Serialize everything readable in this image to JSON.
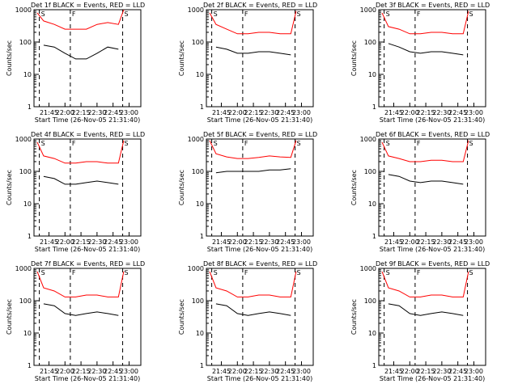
{
  "figure": {
    "xlabel": "Start Time (26-Nov-05 21:31:40)",
    "ylabel": "Counts/sec",
    "x_tick_labels": [
      "21:45",
      "22:00",
      "22:15",
      "22:30",
      "22:45",
      "23:00"
    ],
    "y_tick_labels": [
      "1",
      "10",
      "100",
      "1000"
    ]
  },
  "chart_data": [
    {
      "type": "line",
      "title": "Det 1f BLACK = Events, RED = LLD",
      "x_ticks": [
        "21:45",
        "22:00",
        "22:15",
        "22:30",
        "22:45",
        "23:00"
      ],
      "y_ticks": [
        1,
        10,
        100,
        1000
      ],
      "yscale": "log",
      "ylim": [
        1,
        1000
      ],
      "markers": [
        {
          "label": "S",
          "time": "21:36"
        },
        {
          "label": "F",
          "time": "22:05"
        },
        {
          "label": "S",
          "time": "22:54"
        }
      ],
      "series": [
        {
          "color": "#000000",
          "time": [
            "21:40",
            "21:50",
            "22:00",
            "22:10",
            "22:20",
            "22:30",
            "22:40",
            "22:50"
          ],
          "values": [
            80,
            70,
            45,
            30,
            30,
            45,
            70,
            60
          ]
        },
        {
          "color": "#ff0000",
          "time": [
            "21:34",
            "21:40",
            "21:50",
            "22:00",
            "22:10",
            "22:20",
            "22:30",
            "22:40",
            "22:50",
            "22:55"
          ],
          "values": [
            800,
            450,
            350,
            250,
            250,
            250,
            350,
            400,
            350,
            1000
          ]
        }
      ]
    },
    {
      "type": "line",
      "title": "Det 2f BLACK = Events, RED = LLD",
      "x_ticks": [
        "21:45",
        "22:00",
        "22:15",
        "22:30",
        "22:45",
        "23:00"
      ],
      "y_ticks": [
        1,
        10,
        100,
        1000
      ],
      "yscale": "log",
      "ylim": [
        1,
        1000
      ],
      "markers": [
        {
          "label": "S",
          "time": "21:36"
        },
        {
          "label": "F",
          "time": "22:05"
        },
        {
          "label": "S",
          "time": "22:54"
        }
      ],
      "series": [
        {
          "color": "#000000",
          "time": [
            "21:40",
            "21:50",
            "22:00",
            "22:10",
            "22:20",
            "22:30",
            "22:40",
            "22:50"
          ],
          "values": [
            70,
            60,
            45,
            45,
            50,
            50,
            45,
            40
          ]
        },
        {
          "color": "#ff0000",
          "time": [
            "21:34",
            "21:40",
            "21:50",
            "22:00",
            "22:10",
            "22:20",
            "22:30",
            "22:40",
            "22:50",
            "22:55"
          ],
          "values": [
            800,
            350,
            250,
            180,
            180,
            200,
            200,
            180,
            180,
            900
          ]
        }
      ]
    },
    {
      "type": "line",
      "title": "Det 3f BLACK = Events, RED = LLD",
      "x_ticks": [
        "21:45",
        "22:00",
        "22:15",
        "22:30",
        "22:45",
        "23:00"
      ],
      "y_ticks": [
        1,
        10,
        100,
        1000
      ],
      "yscale": "log",
      "ylim": [
        1,
        1000
      ],
      "markers": [
        {
          "label": "S",
          "time": "21:36"
        },
        {
          "label": "F",
          "time": "22:05"
        },
        {
          "label": "S",
          "time": "22:54"
        }
      ],
      "series": [
        {
          "color": "#000000",
          "time": [
            "21:40",
            "21:50",
            "22:00",
            "22:10",
            "22:20",
            "22:30",
            "22:40",
            "22:50"
          ],
          "values": [
            90,
            70,
            50,
            45,
            50,
            50,
            45,
            40
          ]
        },
        {
          "color": "#ff0000",
          "time": [
            "21:34",
            "21:40",
            "21:50",
            "22:00",
            "22:10",
            "22:20",
            "22:30",
            "22:40",
            "22:50",
            "22:55"
          ],
          "values": [
            800,
            300,
            250,
            180,
            180,
            200,
            200,
            180,
            180,
            900
          ]
        }
      ]
    },
    {
      "type": "line",
      "title": "Det 4f BLACK = Events, RED = LLD",
      "x_ticks": [
        "21:45",
        "22:00",
        "22:15",
        "22:30",
        "22:45",
        "23:00"
      ],
      "y_ticks": [
        1,
        10,
        100,
        1000
      ],
      "yscale": "log",
      "ylim": [
        1,
        1000
      ],
      "markers": [
        {
          "label": "S",
          "time": "21:36"
        },
        {
          "label": "F",
          "time": "22:05"
        },
        {
          "label": "S",
          "time": "22:54"
        }
      ],
      "series": [
        {
          "color": "#000000",
          "time": [
            "21:40",
            "21:50",
            "22:00",
            "22:10",
            "22:20",
            "22:30",
            "22:40",
            "22:50"
          ],
          "values": [
            70,
            60,
            40,
            40,
            45,
            50,
            45,
            40
          ]
        },
        {
          "color": "#ff0000",
          "time": [
            "21:34",
            "21:40",
            "21:50",
            "22:00",
            "22:10",
            "22:20",
            "22:30",
            "22:40",
            "22:50",
            "22:55"
          ],
          "values": [
            800,
            300,
            250,
            180,
            180,
            200,
            200,
            180,
            180,
            900
          ]
        }
      ]
    },
    {
      "type": "line",
      "title": "Det 5f BLACK = Events, RED = LLD",
      "x_ticks": [
        "21:45",
        "22:00",
        "22:15",
        "22:30",
        "22:45",
        "23:00"
      ],
      "y_ticks": [
        1,
        10,
        100,
        1000
      ],
      "yscale": "log",
      "ylim": [
        1,
        1000
      ],
      "markers": [
        {
          "label": "S",
          "time": "21:36"
        },
        {
          "label": "F",
          "time": "22:05"
        },
        {
          "label": "S",
          "time": "22:54"
        }
      ],
      "series": [
        {
          "color": "#000000",
          "time": [
            "21:40",
            "21:50",
            "22:00",
            "22:10",
            "22:20",
            "22:30",
            "22:40",
            "22:50"
          ],
          "values": [
            90,
            100,
            100,
            100,
            100,
            110,
            110,
            120
          ]
        },
        {
          "color": "#ff0000",
          "time": [
            "21:34",
            "21:40",
            "21:50",
            "22:00",
            "22:10",
            "22:20",
            "22:30",
            "22:40",
            "22:50",
            "22:55"
          ],
          "values": [
            900,
            350,
            280,
            250,
            250,
            270,
            300,
            280,
            270,
            900
          ]
        }
      ]
    },
    {
      "type": "line",
      "title": "Det 6f BLACK = Events, RED = LLD",
      "x_ticks": [
        "21:45",
        "22:00",
        "22:15",
        "22:30",
        "22:45",
        "23:00"
      ],
      "y_ticks": [
        1,
        10,
        100,
        1000
      ],
      "yscale": "log",
      "ylim": [
        1,
        1000
      ],
      "markers": [
        {
          "label": "S",
          "time": "21:36"
        },
        {
          "label": "F",
          "time": "22:05"
        },
        {
          "label": "S",
          "time": "22:54"
        }
      ],
      "series": [
        {
          "color": "#000000",
          "time": [
            "21:40",
            "21:50",
            "22:00",
            "22:10",
            "22:20",
            "22:30",
            "22:40",
            "22:50"
          ],
          "values": [
            80,
            70,
            50,
            45,
            50,
            50,
            45,
            40
          ]
        },
        {
          "color": "#ff0000",
          "time": [
            "21:34",
            "21:40",
            "21:50",
            "22:00",
            "22:10",
            "22:20",
            "22:30",
            "22:40",
            "22:50",
            "22:55"
          ],
          "values": [
            800,
            300,
            250,
            200,
            200,
            220,
            220,
            200,
            200,
            900
          ]
        }
      ]
    },
    {
      "type": "line",
      "title": "Det 7f BLACK = Events, RED = LLD",
      "x_ticks": [
        "21:45",
        "22:00",
        "22:15",
        "22:30",
        "22:45",
        "23:00"
      ],
      "y_ticks": [
        1,
        10,
        100,
        1000
      ],
      "yscale": "log",
      "ylim": [
        1,
        1000
      ],
      "markers": [
        {
          "label": "S",
          "time": "21:36"
        },
        {
          "label": "F",
          "time": "22:05"
        },
        {
          "label": "S",
          "time": "22:54"
        }
      ],
      "series": [
        {
          "color": "#000000",
          "time": [
            "21:40",
            "21:50",
            "22:00",
            "22:10",
            "22:20",
            "22:30",
            "22:40",
            "22:50"
          ],
          "values": [
            80,
            70,
            40,
            35,
            40,
            45,
            40,
            35
          ]
        },
        {
          "color": "#ff0000",
          "time": [
            "21:34",
            "21:40",
            "21:50",
            "22:00",
            "22:10",
            "22:20",
            "22:30",
            "22:40",
            "22:50",
            "22:55"
          ],
          "values": [
            800,
            250,
            200,
            130,
            130,
            150,
            150,
            130,
            130,
            800
          ]
        }
      ]
    },
    {
      "type": "line",
      "title": "Det 8f BLACK = Events, RED = LLD",
      "x_ticks": [
        "21:45",
        "22:00",
        "22:15",
        "22:30",
        "22:45",
        "23:00"
      ],
      "y_ticks": [
        1,
        10,
        100,
        1000
      ],
      "yscale": "log",
      "ylim": [
        1,
        1000
      ],
      "markers": [
        {
          "label": "S",
          "time": "21:36"
        },
        {
          "label": "F",
          "time": "22:05"
        },
        {
          "label": "S",
          "time": "22:54"
        }
      ],
      "series": [
        {
          "color": "#000000",
          "time": [
            "21:40",
            "21:50",
            "22:00",
            "22:10",
            "22:20",
            "22:30",
            "22:40",
            "22:50"
          ],
          "values": [
            80,
            70,
            40,
            35,
            40,
            45,
            40,
            35
          ]
        },
        {
          "color": "#ff0000",
          "time": [
            "21:34",
            "21:40",
            "21:50",
            "22:00",
            "22:10",
            "22:20",
            "22:30",
            "22:40",
            "22:50",
            "22:55"
          ],
          "values": [
            800,
            250,
            200,
            130,
            130,
            150,
            150,
            130,
            130,
            800
          ]
        }
      ]
    },
    {
      "type": "line",
      "title": "Det 9f BLACK = Events, RED = LLD",
      "x_ticks": [
        "21:45",
        "22:00",
        "22:15",
        "22:30",
        "22:45",
        "23:00"
      ],
      "y_ticks": [
        1,
        10,
        100,
        1000
      ],
      "yscale": "log",
      "ylim": [
        1,
        1000
      ],
      "markers": [
        {
          "label": "S",
          "time": "21:36"
        },
        {
          "label": "F",
          "time": "22:05"
        },
        {
          "label": "S",
          "time": "22:54"
        }
      ],
      "series": [
        {
          "color": "#000000",
          "time": [
            "21:40",
            "21:50",
            "22:00",
            "22:10",
            "22:20",
            "22:30",
            "22:40",
            "22:50"
          ],
          "values": [
            80,
            70,
            40,
            35,
            40,
            45,
            40,
            35
          ]
        },
        {
          "color": "#ff0000",
          "time": [
            "21:34",
            "21:40",
            "21:50",
            "22:00",
            "22:10",
            "22:20",
            "22:30",
            "22:40",
            "22:50",
            "22:55"
          ],
          "values": [
            800,
            250,
            200,
            130,
            130,
            150,
            150,
            130,
            130,
            800
          ]
        }
      ]
    }
  ]
}
